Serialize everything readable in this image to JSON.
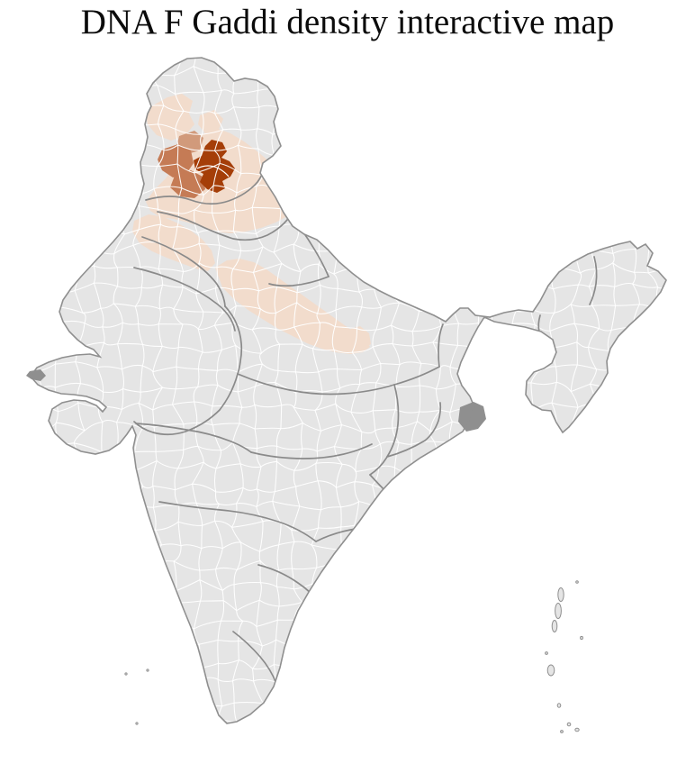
{
  "title": "DNA F Gaddi density interactive map",
  "map": {
    "type": "choropleth",
    "region": "India, district level",
    "background_color": "#ffffff",
    "land_color": "#e5e5e5",
    "district_border_color": "#ffffff",
    "state_border_color": "#8a8a8a",
    "coastline_color": "#8f8f8f",
    "water_feature_color": "#8f8f8f",
    "density_scale": {
      "none": "#e5e5e5",
      "low": "#f2dccc",
      "medium_low": "#d19a7b",
      "medium": "#c57b55",
      "high": "#a53e08"
    },
    "hotspot_region": "northwest India (Himachal Pradesh area)"
  }
}
